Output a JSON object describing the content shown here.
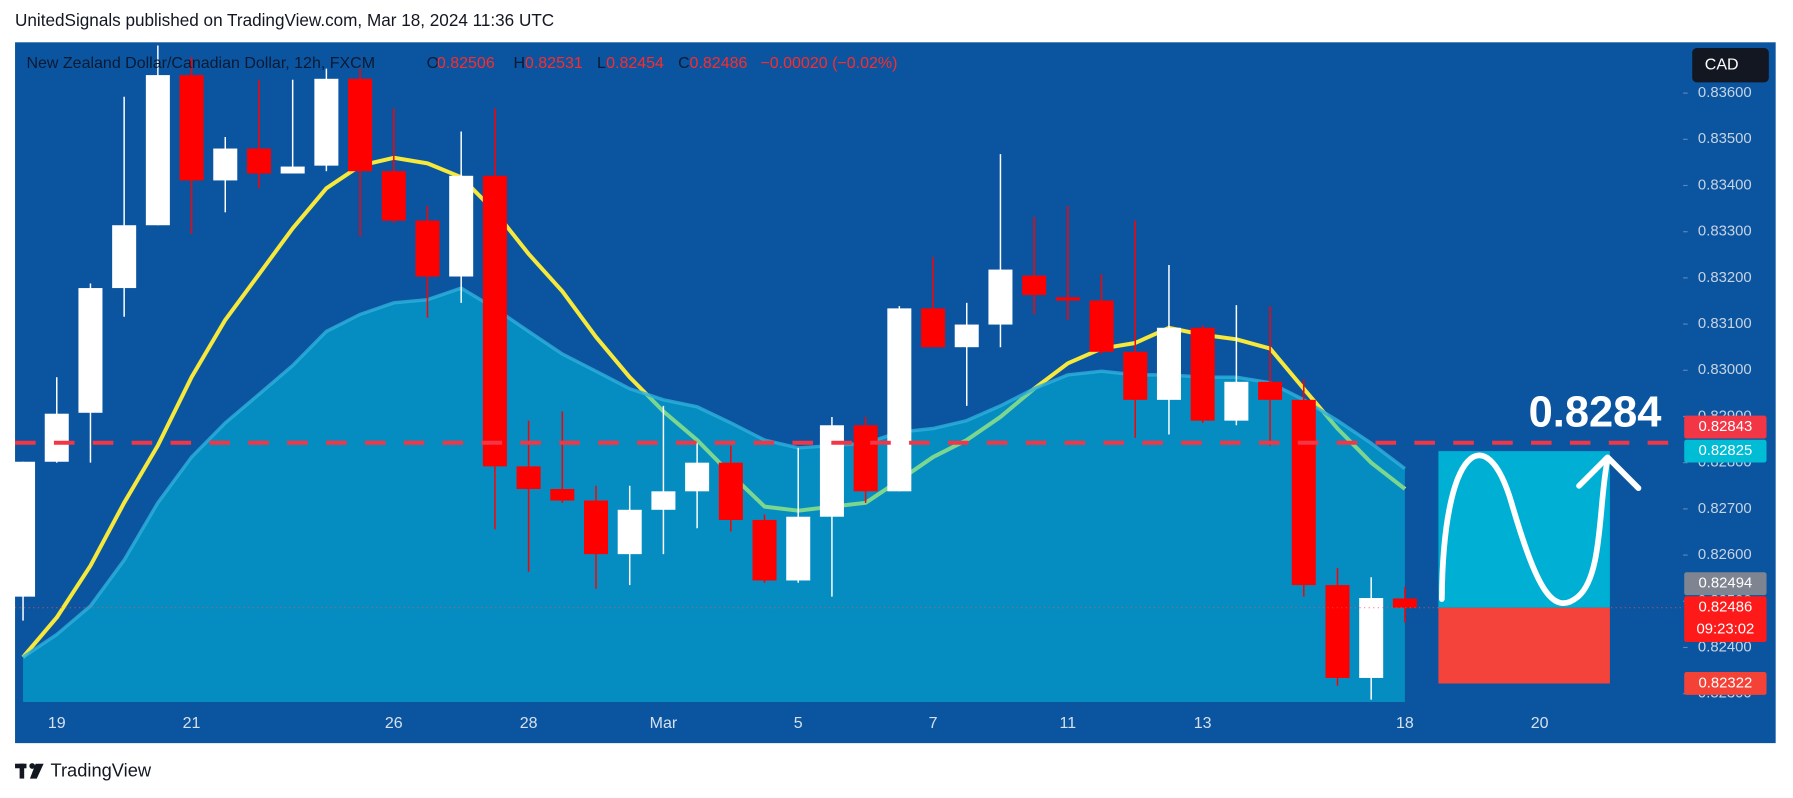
{
  "header": {
    "published": "UnitedSignals published on TradingView.com, Mar 18, 2024 11:36 UTC"
  },
  "footer": {
    "brand": "TradingView"
  },
  "chart_data": {
    "type": "candlestick",
    "legend": {
      "symbol": "New Zealand Dollar/Canadian Dollar, 12h, FXCM",
      "o": "O",
      "h": "H",
      "l": "L",
      "c": "C",
      "change": "−0.00020 (−0.02%)"
    },
    "currency": "CAD",
    "categories": [
      null,
      "19",
      null,
      null,
      null,
      "21",
      null,
      null,
      null,
      null,
      null,
      "26",
      null,
      null,
      null,
      "28",
      null,
      null,
      null,
      "Mar",
      null,
      null,
      null,
      "5",
      null,
      null,
      null,
      "7",
      null,
      null,
      null,
      "11",
      null,
      null,
      null,
      "13",
      null,
      null,
      null,
      null,
      null,
      "18",
      null,
      null,
      null,
      "20"
    ],
    "open": [
      0.8251,
      0.82802,
      0.82908,
      0.83178,
      0.83314,
      0.83639,
      0.83411,
      0.8348,
      0.83426,
      0.83443,
      0.83631,
      0.83431,
      0.83324,
      0.83203,
      0.83421,
      0.82792,
      0.82743,
      0.82718,
      0.82602,
      0.82698,
      0.82738,
      0.828,
      0.82676,
      0.82545,
      0.82683,
      0.82881,
      0.82738,
      0.83134,
      0.8305,
      0.83099,
      0.83205,
      0.83158,
      0.83151,
      0.8304,
      0.82936,
      0.83092,
      0.82891,
      0.82975,
      0.82936,
      0.82535,
      0.82334,
      0.82506,
      null,
      null,
      null,
      null
    ],
    "high": [
      0.82802,
      0.82985,
      0.83188,
      0.83592,
      0.83703,
      0.83678,
      0.83505,
      0.83629,
      0.83629,
      0.83653,
      0.83653,
      0.83567,
      0.83356,
      0.83517,
      0.83567,
      0.82891,
      0.82911,
      0.8275,
      0.8275,
      0.82923,
      0.82842,
      0.82837,
      0.82688,
      0.82832,
      0.82899,
      0.82899,
      0.83139,
      0.83245,
      0.83146,
      0.83468,
      0.83332,
      0.83356,
      0.83208,
      0.83324,
      0.83228,
      0.83097,
      0.83141,
      0.83139,
      0.8298,
      0.82572,
      0.82552,
      0.82531,
      null,
      null,
      null,
      null
    ],
    "low": [
      0.82458,
      0.828,
      0.828,
      0.83116,
      0.83314,
      0.83295,
      0.83342,
      0.83394,
      0.83426,
      0.83431,
      0.8329,
      0.83319,
      0.83114,
      0.83146,
      0.82656,
      0.82564,
      0.82713,
      0.82527,
      0.82535,
      0.82602,
      0.82658,
      0.82651,
      0.8254,
      0.8254,
      0.8251,
      0.82713,
      0.82738,
      0.8305,
      0.82923,
      0.8305,
      0.83121,
      0.83109,
      0.83035,
      0.82854,
      0.82861,
      0.82886,
      0.82881,
      0.82837,
      0.8251,
      0.82317,
      0.82287,
      0.82454,
      null,
      null,
      null,
      null
    ],
    "close": [
      0.82802,
      0.82906,
      0.83178,
      0.83314,
      0.83639,
      0.83411,
      0.8348,
      0.83426,
      0.83441,
      0.83631,
      0.83431,
      0.83324,
      0.83203,
      0.83421,
      0.82792,
      0.82743,
      0.82718,
      0.82602,
      0.82698,
      0.82738,
      0.828,
      0.82676,
      0.82545,
      0.82683,
      0.82881,
      0.82738,
      0.83134,
      0.8305,
      0.83099,
      0.83218,
      0.83163,
      0.83151,
      0.8304,
      0.82936,
      0.83092,
      0.82891,
      0.82975,
      0.82936,
      0.82535,
      0.82334,
      0.82507,
      0.82486,
      null,
      null,
      null,
      null
    ],
    "ma_fast": [
      0.82379,
      0.82465,
      0.82577,
      0.82713,
      0.82837,
      0.82985,
      0.83109,
      0.83208,
      0.83307,
      0.83394,
      0.83443,
      0.8346,
      0.83448,
      0.83418,
      0.83344,
      0.83252,
      0.83171,
      0.83072,
      0.82985,
      0.82911,
      0.82849,
      0.82775,
      0.82705,
      0.82696,
      0.82705,
      0.82713,
      0.82762,
      0.82812,
      0.82849,
      0.82899,
      0.8296,
      0.83015,
      0.83047,
      0.83059,
      0.83092,
      0.83077,
      0.83067,
      0.83047,
      0.8296,
      0.82874,
      0.828,
      0.82743,
      null,
      null,
      null,
      null
    ],
    "ma_slow": [
      0.82379,
      0.82428,
      0.8249,
      0.82589,
      0.82713,
      0.82812,
      0.82886,
      0.82948,
      0.8301,
      0.83084,
      0.83121,
      0.83146,
      0.83153,
      0.83178,
      0.83134,
      0.83084,
      0.83035,
      0.82998,
      0.8296,
      0.82936,
      0.82921,
      0.82886,
      0.82849,
      0.82832,
      0.82837,
      0.82842,
      0.82866,
      0.82874,
      0.82891,
      0.82923,
      0.8296,
      0.8299,
      0.82998,
      0.8299,
      0.8299,
      0.82985,
      0.82985,
      0.82973,
      0.82936,
      0.82891,
      0.82842,
      0.82787,
      null,
      null,
      null,
      null
    ],
    "up_color": "#ffffff",
    "down_color": "#ff0000",
    "ma_fast_color": "#f7e83c",
    "ma_slow_color": "#2fb0dc",
    "ylim": [
      0.82282,
      0.8371
    ],
    "yticks": [
      {
        "value": 0.836,
        "label": "0.83600"
      },
      {
        "value": 0.835,
        "label": "0.83500"
      },
      {
        "value": 0.834,
        "label": "0.83400"
      },
      {
        "value": 0.833,
        "label": "0.83300"
      },
      {
        "value": 0.832,
        "label": "0.83200"
      },
      {
        "value": 0.831,
        "label": "0.83100"
      },
      {
        "value": 0.83,
        "label": "0.83000"
      },
      {
        "value": 0.829,
        "label": "0.82900"
      },
      {
        "value": 0.828,
        "label": "0.82800"
      },
      {
        "value": 0.827,
        "label": "0.82700"
      },
      {
        "value": 0.826,
        "label": "0.82600"
      },
      {
        "value": 0.825,
        "label": "0.82500"
      },
      {
        "value": 0.824,
        "label": "0.82400"
      },
      {
        "value": 0.823,
        "label": "0.82300"
      }
    ],
    "grid": false,
    "price_labels": [
      {
        "value": 0.82843,
        "color": "#f23645"
      },
      {
        "value": 0.82825,
        "color": "#00bcd4"
      },
      {
        "value": 0.82494,
        "color": "#7f8590"
      },
      {
        "value": 0.82322,
        "color": "#f44336"
      }
    ],
    "countdown": "09:23:02",
    "target_text": "0.8284"
  }
}
